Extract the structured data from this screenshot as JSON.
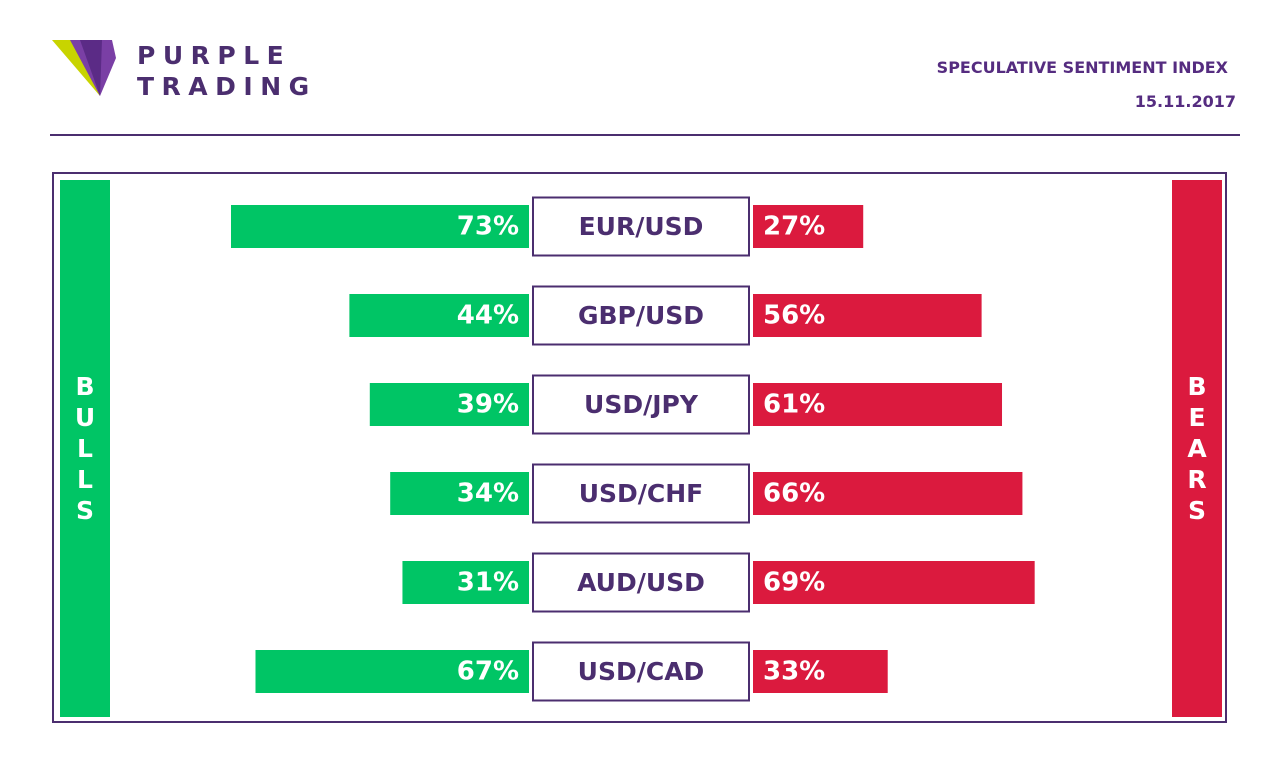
{
  "header": {
    "brand_line1": "PURPLE",
    "brand_line2": "TRADING",
    "title": "SPECULATIVE SENTIMENT INDEX",
    "date": "15.11.2017"
  },
  "logo": {
    "icon": "purple-trading-logo-icon"
  },
  "colors": {
    "bulls": "#00c565",
    "bears": "#db1a3e",
    "brand": "#4b2e6f"
  },
  "side_labels": {
    "bulls": [
      "B",
      "U",
      "L",
      "L",
      "S"
    ],
    "bears": [
      "B",
      "E",
      "A",
      "R",
      "S"
    ]
  },
  "chart_data": {
    "type": "bar",
    "title": "SPECULATIVE SENTIMENT INDEX",
    "categories": [
      "EUR/USD",
      "GBP/USD",
      "USD/JPY",
      "USD/CHF",
      "AUD/USD",
      "USD/CAD"
    ],
    "series": [
      {
        "name": "BULLS",
        "values": [
          73,
          44,
          39,
          34,
          31,
          67
        ],
        "labels": [
          "73%",
          "44%",
          "39%",
          "34%",
          "31%",
          "67%"
        ]
      },
      {
        "name": "BEARS",
        "values": [
          27,
          56,
          61,
          66,
          69,
          33
        ],
        "labels": [
          "27%",
          "56%",
          "61%",
          "66%",
          "69%",
          "33%"
        ]
      }
    ],
    "unit": "%"
  }
}
